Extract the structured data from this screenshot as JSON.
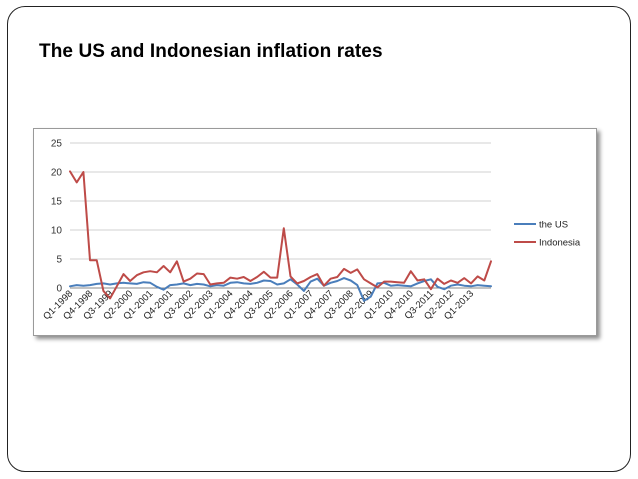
{
  "slide": {
    "title": "The US and Indonesian inflation rates"
  },
  "chart_data": {
    "type": "line",
    "title": "",
    "xlabel": "",
    "ylabel": "",
    "ylim": [
      0,
      25
    ],
    "yticks": [
      0,
      5,
      10,
      15,
      20,
      25
    ],
    "grid": true,
    "legend_position": "right",
    "x_tick_labels": [
      {
        "index": 0,
        "label": "Q1-1998"
      },
      {
        "index": 3,
        "label": "Q4-1998"
      },
      {
        "index": 6,
        "label": "Q3-1999"
      },
      {
        "index": 9,
        "label": "Q2-2000"
      },
      {
        "index": 12,
        "label": "Q1-2001"
      },
      {
        "index": 15,
        "label": "Q4-2001"
      },
      {
        "index": 18,
        "label": "Q3-2002"
      },
      {
        "index": 21,
        "label": "Q2-2003"
      },
      {
        "index": 24,
        "label": "Q1-2004"
      },
      {
        "index": 27,
        "label": "Q4-2004"
      },
      {
        "index": 30,
        "label": "Q3-2005"
      },
      {
        "index": 33,
        "label": "Q2-2006"
      },
      {
        "index": 36,
        "label": "Q1-2007"
      },
      {
        "index": 39,
        "label": "Q4-2007"
      },
      {
        "index": 42,
        "label": "Q3-2008"
      },
      {
        "index": 45,
        "label": "Q2-2009"
      },
      {
        "index": 48,
        "label": "Q1-2010"
      },
      {
        "index": 51,
        "label": "Q4-2010"
      },
      {
        "index": 54,
        "label": "Q3-2011"
      },
      {
        "index": 57,
        "label": "Q2-2012"
      },
      {
        "index": 60,
        "label": "Q1-2013"
      }
    ],
    "series": [
      {
        "name": "the US",
        "color": "#4A7EBB",
        "values": [
          0.3,
          0.5,
          0.4,
          0.5,
          0.7,
          0.8,
          0.6,
          0.8,
          0.9,
          0.8,
          0.7,
          1.0,
          0.9,
          0.2,
          -0.3,
          0.5,
          0.6,
          0.8,
          0.5,
          0.7,
          0.6,
          0.3,
          0.5,
          0.4,
          0.9,
          1.0,
          0.8,
          0.7,
          0.9,
          1.3,
          1.2,
          0.6,
          0.8,
          1.5,
          0.6,
          -0.5,
          1.1,
          1.6,
          0.4,
          0.9,
          1.2,
          1.7,
          1.3,
          0.5,
          -2.2,
          -1.5,
          0.8,
          0.9,
          0.4,
          0.5,
          0.4,
          0.3,
          0.8,
          1.2,
          1.5,
          0.2,
          -0.2,
          0.4,
          0.6,
          0.4,
          0.3,
          0.5,
          0.4,
          0.3
        ]
      },
      {
        "name": "Indonesia",
        "color": "#BE4B48",
        "values": [
          20.1,
          18.2,
          20.0,
          4.8,
          4.8,
          -0.5,
          -1.8,
          0.3,
          2.4,
          1.2,
          2.2,
          2.7,
          2.9,
          2.7,
          3.8,
          2.7,
          4.6,
          1.1,
          1.6,
          2.5,
          2.4,
          0.6,
          0.8,
          0.9,
          1.8,
          1.6,
          1.9,
          1.2,
          1.9,
          2.8,
          1.8,
          1.8,
          10.3,
          2.0,
          0.8,
          1.2,
          1.9,
          2.4,
          0.4,
          1.6,
          1.9,
          3.3,
          2.6,
          3.2,
          1.5,
          0.8,
          0.1,
          1.1,
          1.1,
          1.0,
          0.9,
          2.9,
          1.3,
          1.5,
          -0.2,
          1.6,
          0.7,
          1.3,
          0.9,
          1.7,
          0.8,
          2.0,
          1.3,
          4.6
        ]
      }
    ]
  }
}
